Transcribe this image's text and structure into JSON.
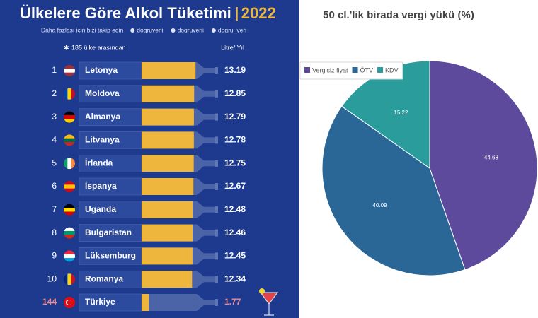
{
  "chart_data": [
    {
      "type": "bar",
      "orientation": "horizontal",
      "title": "Ülkelere Göre Alkol Tüketimi",
      "title_year": "2022",
      "subtitle": "Daha fazlası için bizi takip edin",
      "social": [
        "dogruverii",
        "dogruverii",
        "dogru_veri"
      ],
      "note": "185 ülke arasından",
      "unit": "Litre/ Yıl",
      "ranks": [
        1,
        2,
        3,
        4,
        5,
        6,
        7,
        8,
        9,
        10,
        144
      ],
      "categories": [
        "Letonya",
        "Moldova",
        "Almanya",
        "Litvanya",
        "İrlanda",
        "İspanya",
        "Uganda",
        "Bulgaristan",
        "Lüksemburg",
        "Romanya",
        "Türkiye"
      ],
      "values": [
        13.19,
        12.85,
        12.79,
        12.78,
        12.75,
        12.67,
        12.48,
        12.46,
        12.45,
        12.34,
        1.77
      ],
      "label_colors": [
        "#ffffff",
        "#ffffff",
        "#ffffff",
        "#ffffff",
        "#ffffff",
        "#ffffff",
        "#ffffff",
        "#ffffff",
        "#ffffff",
        "#ffffff",
        "#f28a8a"
      ],
      "color": "#efb63e",
      "xlim": [
        0,
        13.5
      ]
    },
    {
      "type": "pie",
      "title": "50 cl.'lik birada vergi yükü (%)",
      "categories": [
        "Vergisiz fiyat",
        "ÖTV",
        "KDV"
      ],
      "values": [
        44.68,
        40.09,
        15.22
      ],
      "colors": [
        "#5e4a9c",
        "#2a6797",
        "#2a9c9b"
      ],
      "legend": "top-left"
    }
  ]
}
